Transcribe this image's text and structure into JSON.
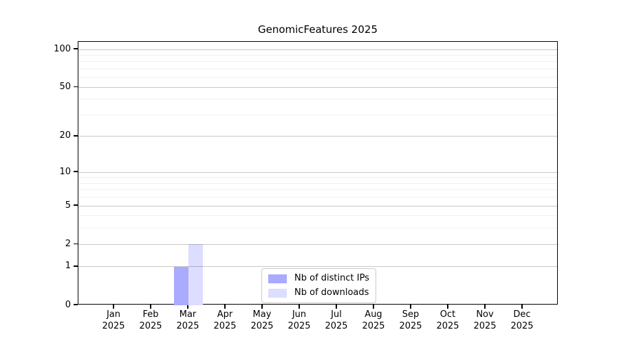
{
  "figure": {
    "background": "#ffffff"
  },
  "chart_data": {
    "type": "bar",
    "title": "GenomicFeatures 2025",
    "categories": [
      "Jan 2025",
      "Feb 2025",
      "Mar 2025",
      "Apr 2025",
      "May 2025",
      "Jun 2025",
      "Jul 2025",
      "Aug 2025",
      "Sep 2025",
      "Oct 2025",
      "Nov 2025",
      "Dec 2025"
    ],
    "series": [
      {
        "name": "Nb of distinct IPs",
        "color": "#aaaaff",
        "values": [
          0,
          0,
          1,
          0,
          0,
          0,
          0,
          0,
          0,
          0,
          0,
          0
        ]
      },
      {
        "name": "Nb of downloads",
        "color": "#ddddff",
        "values": [
          0,
          0,
          2,
          0,
          0,
          0,
          0,
          0,
          0,
          0,
          0,
          0
        ]
      }
    ],
    "xlabel": "",
    "ylabel": "",
    "yscale": "log1p",
    "yticks": [
      0,
      1,
      2,
      5,
      10,
      20,
      50,
      100
    ],
    "minor_yticks": [
      3,
      4,
      6,
      7,
      8,
      9,
      30,
      40,
      60,
      70,
      80,
      90
    ],
    "ylim": [
      0,
      115
    ],
    "grid": true,
    "grid_above_bars": true,
    "legend_position": "lower center",
    "colors": {
      "major_gridline": "rgba(0,0,0,0.22)",
      "minor_gridline": "rgba(0,0,0,0.06)",
      "axis": "#000000",
      "text": "#000000"
    }
  }
}
